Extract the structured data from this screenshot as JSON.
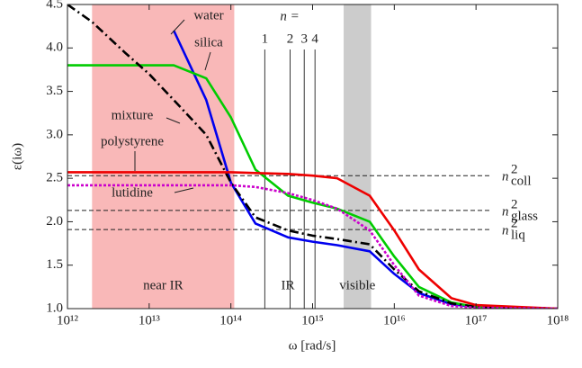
{
  "chart_data": {
    "type": "line",
    "xlabel": "ω [rad/s]",
    "ylabel": "ε(iω)",
    "log_x": true,
    "xlim": [
      1000000000000.0,
      1e+18
    ],
    "ylim": [
      1.0,
      4.5
    ],
    "xticks": [
      {
        "value": 1000000000000.0,
        "label": "10¹²"
      },
      {
        "value": 10000000000000.0,
        "label": "10¹³"
      },
      {
        "value": 100000000000000.0,
        "label": "10¹⁴"
      },
      {
        "value": 1000000000000000.0,
        "label": "10¹⁵"
      },
      {
        "value": 1e+16,
        "label": "10¹⁶"
      },
      {
        "value": 1e+17,
        "label": "10¹⁷"
      },
      {
        "value": 1e+18,
        "label": "10¹⁸"
      }
    ],
    "yticks": [
      {
        "value": 1,
        "label": "1.0"
      },
      1.5,
      {
        "value": 2,
        "label": "2.0"
      },
      2.5,
      {
        "value": 3,
        "label": "3.0"
      },
      3.5,
      {
        "value": 4,
        "label": "4.0"
      },
      4.5
    ],
    "x": [
      1000000000000.0,
      2000000000000.0,
      5000000000000.0,
      10000000000000.0,
      20000000000000.0,
      50000000000000.0,
      100000000000000.0,
      200000000000000.0,
      500000000000000.0,
      1000000000000000.0,
      2000000000000000.0,
      5000000000000000.0,
      1e+16,
      2e+16,
      5e+16,
      1e+17,
      1e+18
    ],
    "series": [
      {
        "name": "water",
        "color": "#0000ee",
        "dash": "solid",
        "values": [
          null,
          null,
          null,
          null,
          4.2,
          3.4,
          2.45,
          1.98,
          1.82,
          1.77,
          1.73,
          1.66,
          1.4,
          1.18,
          1.05,
          1.02,
          1.0
        ]
      },
      {
        "name": "silica",
        "color": "#00cc00",
        "dash": "solid",
        "values": [
          3.8,
          3.8,
          3.8,
          3.8,
          3.8,
          3.65,
          3.2,
          2.6,
          2.3,
          2.22,
          2.15,
          2.0,
          1.6,
          1.25,
          1.07,
          1.02,
          1.0
        ]
      },
      {
        "name": "mixture",
        "color": "#000000",
        "dash": "dash-dot",
        "values": [
          4.5,
          4.3,
          3.95,
          3.7,
          3.4,
          3.0,
          2.45,
          2.05,
          1.9,
          1.84,
          1.8,
          1.74,
          1.45,
          1.2,
          1.06,
          1.02,
          1.0
        ]
      },
      {
        "name": "polystyrene",
        "color": "#ee0000",
        "dash": "solid",
        "values": [
          2.57,
          2.57,
          2.57,
          2.57,
          2.57,
          2.57,
          2.57,
          2.56,
          2.55,
          2.53,
          2.5,
          2.3,
          1.9,
          1.45,
          1.12,
          1.04,
          1.0
        ]
      },
      {
        "name": "lutidine",
        "color": "#cc00cc",
        "dash": "dotted",
        "values": [
          2.42,
          2.42,
          2.42,
          2.42,
          2.42,
          2.42,
          2.42,
          2.4,
          2.33,
          2.25,
          2.15,
          1.9,
          1.5,
          1.15,
          1.03,
          1.01,
          1.0
        ]
      }
    ],
    "reference_lines": [
      {
        "symbol": "n",
        "sup": "2",
        "sub": "coll",
        "value": 2.53
      },
      {
        "symbol": "n",
        "sup": "2",
        "sub": "glass",
        "value": 2.13
      },
      {
        "symbol": "n",
        "sup": "2",
        "sub": "liq",
        "value": 1.91
      }
    ],
    "index_label": "n =",
    "index_lines": [
      {
        "label": "1",
        "value": 260000000000000.0
      },
      {
        "label": "2",
        "value": 530000000000000.0
      },
      {
        "label": "3",
        "value": 790000000000000.0
      },
      {
        "label": "4",
        "value": 1070000000000000.0
      }
    ],
    "bands": [
      {
        "label": "near IR",
        "range": [
          2000000000000.0,
          110000000000000.0
        ],
        "color": "#f9b8b8"
      },
      {
        "label": "visible",
        "range": [
          2400000000000000.0,
          5200000000000000.0
        ],
        "color": "#cccccc"
      }
    ],
    "ir_label": "IR"
  }
}
